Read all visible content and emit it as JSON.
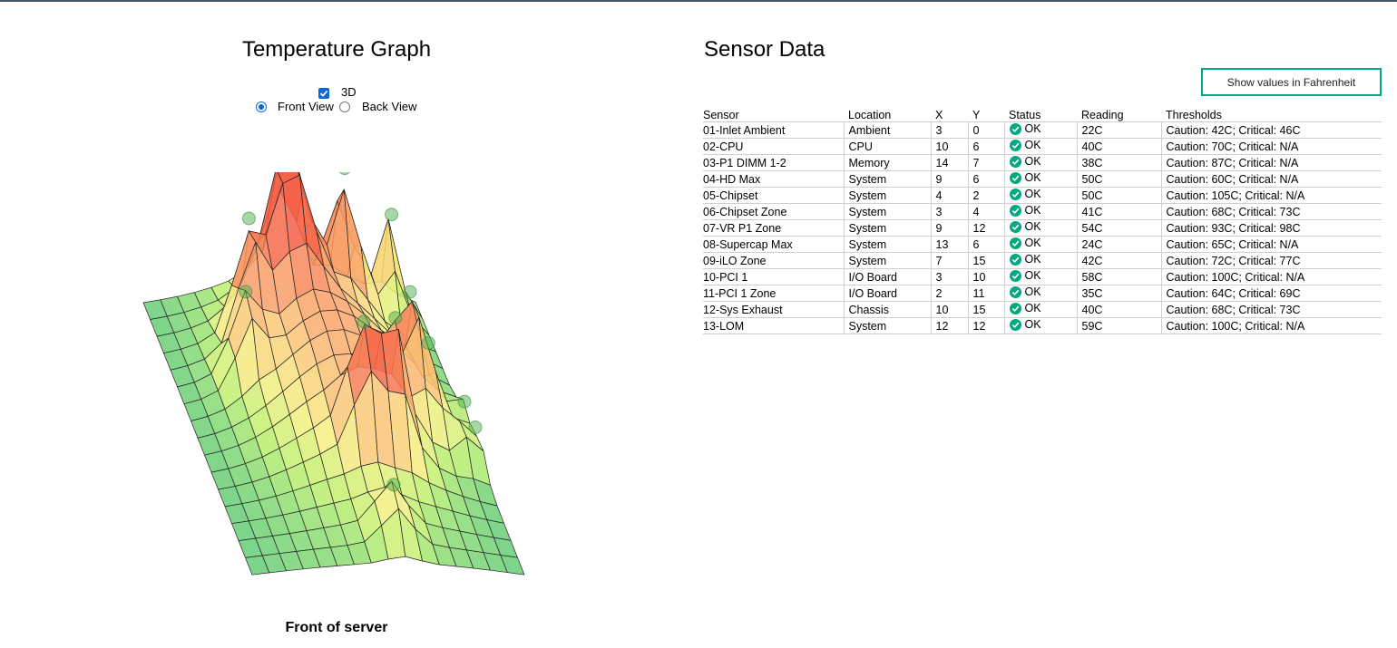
{
  "graph": {
    "title": "Temperature Graph",
    "checkbox_3d_label": "3D",
    "checkbox_3d_checked": true,
    "view_options": [
      {
        "label": "Front View",
        "selected": true
      },
      {
        "label": "Back View",
        "selected": false
      }
    ],
    "caption": "Front of server"
  },
  "sensors_panel": {
    "title": "Sensor Data",
    "fahrenheit_button": "Show values in Fahrenheit",
    "columns": [
      "Sensor",
      "Location",
      "X",
      "Y",
      "Status",
      "Reading",
      "Thresholds"
    ],
    "rows": [
      {
        "sensor": "01-Inlet Ambient",
        "location": "Ambient",
        "x": "3",
        "y": "0",
        "status": "OK",
        "reading": "22C",
        "thresholds": "Caution: 42C; Critical: 46C"
      },
      {
        "sensor": "02-CPU",
        "location": "CPU",
        "x": "10",
        "y": "6",
        "status": "OK",
        "reading": "40C",
        "thresholds": "Caution: 70C; Critical: N/A"
      },
      {
        "sensor": "03-P1 DIMM 1-2",
        "location": "Memory",
        "x": "14",
        "y": "7",
        "status": "OK",
        "reading": "38C",
        "thresholds": "Caution: 87C; Critical: N/A"
      },
      {
        "sensor": "04-HD Max",
        "location": "System",
        "x": "9",
        "y": "6",
        "status": "OK",
        "reading": "50C",
        "thresholds": "Caution: 60C; Critical: N/A"
      },
      {
        "sensor": "05-Chipset",
        "location": "System",
        "x": "4",
        "y": "2",
        "status": "OK",
        "reading": "50C",
        "thresholds": "Caution: 105C; Critical: N/A"
      },
      {
        "sensor": "06-Chipset Zone",
        "location": "System",
        "x": "3",
        "y": "4",
        "status": "OK",
        "reading": "41C",
        "thresholds": "Caution: 68C; Critical: 73C"
      },
      {
        "sensor": "07-VR P1 Zone",
        "location": "System",
        "x": "9",
        "y": "12",
        "status": "OK",
        "reading": "54C",
        "thresholds": "Caution: 93C; Critical: 98C"
      },
      {
        "sensor": "08-Supercap Max",
        "location": "System",
        "x": "13",
        "y": "6",
        "status": "OK",
        "reading": "24C",
        "thresholds": "Caution: 65C; Critical: N/A"
      },
      {
        "sensor": "09-iLO Zone",
        "location": "System",
        "x": "7",
        "y": "15",
        "status": "OK",
        "reading": "42C",
        "thresholds": "Caution: 72C; Critical: 77C"
      },
      {
        "sensor": "10-PCI 1",
        "location": "I/O Board",
        "x": "3",
        "y": "10",
        "status": "OK",
        "reading": "58C",
        "thresholds": "Caution: 100C; Critical: N/A"
      },
      {
        "sensor": "11-PCI 1 Zone",
        "location": "I/O Board",
        "x": "2",
        "y": "11",
        "status": "OK",
        "reading": "35C",
        "thresholds": "Caution: 64C; Critical: 69C"
      },
      {
        "sensor": "12-Sys Exhaust",
        "location": "Chassis",
        "x": "10",
        "y": "15",
        "status": "OK",
        "reading": "40C",
        "thresholds": "Caution: 68C; Critical: 73C"
      },
      {
        "sensor": "13-LOM",
        "location": "System",
        "x": "12",
        "y": "12",
        "status": "OK",
        "reading": "59C",
        "thresholds": "Caution: 100C; Critical: N/A"
      }
    ]
  },
  "colors": {
    "accent_green": "#01a982",
    "control_blue": "#0a66d9",
    "top_bar": "#425563"
  }
}
